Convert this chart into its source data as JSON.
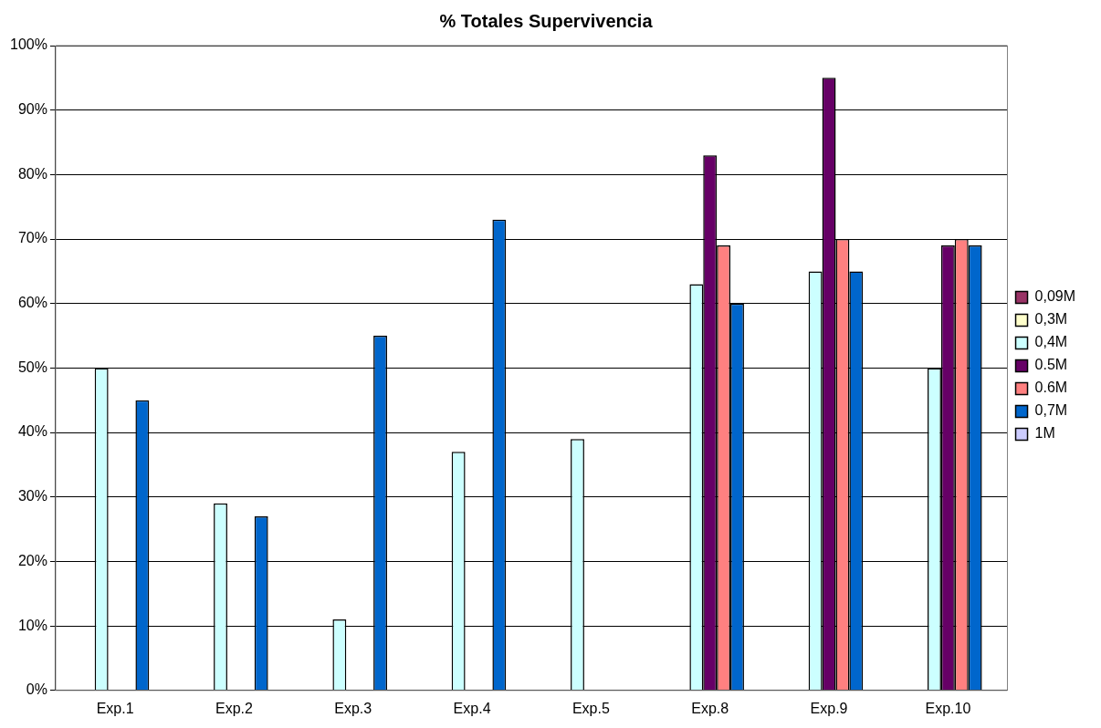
{
  "chart_data": {
    "type": "bar",
    "title": "% Totales Supervivencia",
    "categories": [
      "Exp.1",
      "Exp.2",
      "Exp.3",
      "Exp.4",
      "Exp.5",
      "Exp.8",
      "Exp.9",
      "Exp.10"
    ],
    "series": [
      {
        "name": "0,09M",
        "color": "#993366",
        "values": [
          null,
          null,
          null,
          null,
          null,
          null,
          null,
          null
        ]
      },
      {
        "name": "0,3M",
        "color": "#ffffcc",
        "values": [
          null,
          null,
          null,
          null,
          null,
          null,
          null,
          null
        ]
      },
      {
        "name": "0,4M",
        "color": "#ccffff",
        "values": [
          50,
          29,
          11,
          37,
          39,
          63,
          65,
          50
        ]
      },
      {
        "name": "0.5M",
        "color": "#660066",
        "values": [
          null,
          null,
          null,
          null,
          null,
          83,
          95,
          69
        ]
      },
      {
        "name": "0.6M",
        "color": "#ff8080",
        "values": [
          null,
          null,
          null,
          null,
          null,
          69,
          70,
          70
        ]
      },
      {
        "name": "0,7M",
        "color": "#0066cc",
        "values": [
          45,
          27,
          55,
          73,
          null,
          60,
          65,
          69
        ]
      },
      {
        "name": "1M",
        "color": "#ccccff",
        "values": [
          null,
          null,
          null,
          null,
          null,
          null,
          null,
          null
        ]
      }
    ],
    "ylim": [
      0,
      100
    ],
    "yticks": [
      {
        "value": 0,
        "label": "0%"
      },
      {
        "value": 10,
        "label": "10%"
      },
      {
        "value": 20,
        "label": "20%"
      },
      {
        "value": 30,
        "label": "30%"
      },
      {
        "value": 40,
        "label": "40%"
      },
      {
        "value": 50,
        "label": "50%"
      },
      {
        "value": 60,
        "label": "60%"
      },
      {
        "value": 70,
        "label": "70%"
      },
      {
        "value": 80,
        "label": "80%"
      },
      {
        "value": 90,
        "label": "90%"
      },
      {
        "value": 100,
        "label": "100%"
      }
    ],
    "grid": "y",
    "legend": "right"
  }
}
